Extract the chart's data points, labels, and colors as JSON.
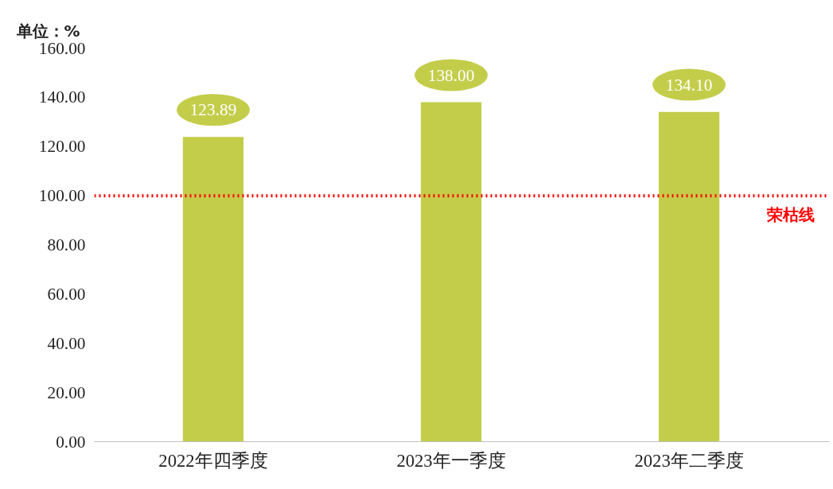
{
  "chart_data": {
    "type": "bar",
    "ylabel": "单位：%",
    "categories": [
      "2022年四季度",
      "2023年一季度",
      "2023年二季度"
    ],
    "values": [
      123.89,
      138.0,
      134.1
    ],
    "color": "#c3cd4a",
    "data_labels": true,
    "value_labels": [
      "123.89",
      "138.00",
      "134.10"
    ],
    "ylim": [
      0,
      160
    ],
    "yticks": [
      {
        "value": 0,
        "label": "0.00"
      },
      {
        "value": 20,
        "label": "20.00"
      },
      {
        "value": 40,
        "label": "40.00"
      },
      {
        "value": 60,
        "label": "60.00"
      },
      {
        "value": 80,
        "label": "80.00"
      },
      {
        "value": 100,
        "label": "100.00"
      },
      {
        "value": 120,
        "label": "120.00"
      },
      {
        "value": 140,
        "label": "140.00"
      },
      {
        "value": 160,
        "label": "160.00"
      }
    ],
    "ref_lines": [
      {
        "axis": "y",
        "value": 100,
        "label": "荣枯线",
        "color": "#ff0000",
        "line_style": "dotted"
      }
    ],
    "grid": false
  }
}
